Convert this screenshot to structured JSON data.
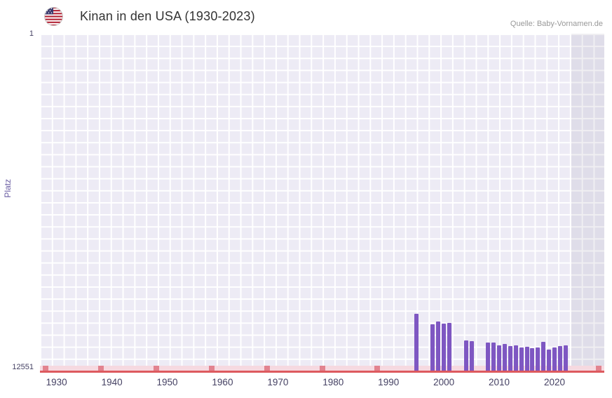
{
  "header": {
    "title": "Kinan in den USA (1930-2023)",
    "flag_icon": "us-flag"
  },
  "source": "Quelle: Baby-Vornamen.de",
  "y_axis": {
    "title": "Platz",
    "top_label": "1",
    "bottom_label": "12551"
  },
  "chart_data": {
    "type": "bar",
    "title": "Kinan in den USA (1930-2023)",
    "xlabel": "",
    "ylabel": "Platz",
    "y_domain": [
      1,
      12551
    ],
    "y_inverted": true,
    "x_domain": [
      1927,
      2029
    ],
    "x_ticks": [
      {
        "label": "1930",
        "year": 1930
      },
      {
        "label": "1940",
        "year": 1940
      },
      {
        "label": "1950",
        "year": 1950
      },
      {
        "label": "1960",
        "year": 1960
      },
      {
        "label": "1970",
        "year": 1970
      },
      {
        "label": "1980",
        "year": 1980
      },
      {
        "label": "1990",
        "year": 1990
      },
      {
        "label": "2000",
        "year": 2000
      },
      {
        "label": "2010",
        "year": 2010
      },
      {
        "label": "2020",
        "year": 2020
      }
    ],
    "x": [
      1995,
      1998,
      1999,
      2000,
      2001,
      2004,
      2005,
      2008,
      2009,
      2010,
      2011,
      2012,
      2013,
      2014,
      2015,
      2016,
      2017,
      2018,
      2019,
      2020,
      2021,
      2022
    ],
    "values": [
      10430,
      10830,
      10720,
      10800,
      10770,
      11430,
      11450,
      11500,
      11510,
      11610,
      11560,
      11640,
      11610,
      11690,
      11660,
      11710,
      11690,
      11480,
      11770,
      11690,
      11640,
      11610
    ],
    "no_data_mark_years": [
      1928,
      1938,
      1948,
      1958,
      1968,
      1978,
      1988,
      2028
    ],
    "shaded_from_year": 2023,
    "colors": {
      "bar": "#7e57c2",
      "plot_bg": "#edebf5",
      "grid_line": "#ffffff",
      "baseline": "#dd5a5f",
      "strip": "#f6d9e0",
      "strip_mark": "#e2838f",
      "shade": "rgba(104,98,130,0.10)"
    }
  }
}
